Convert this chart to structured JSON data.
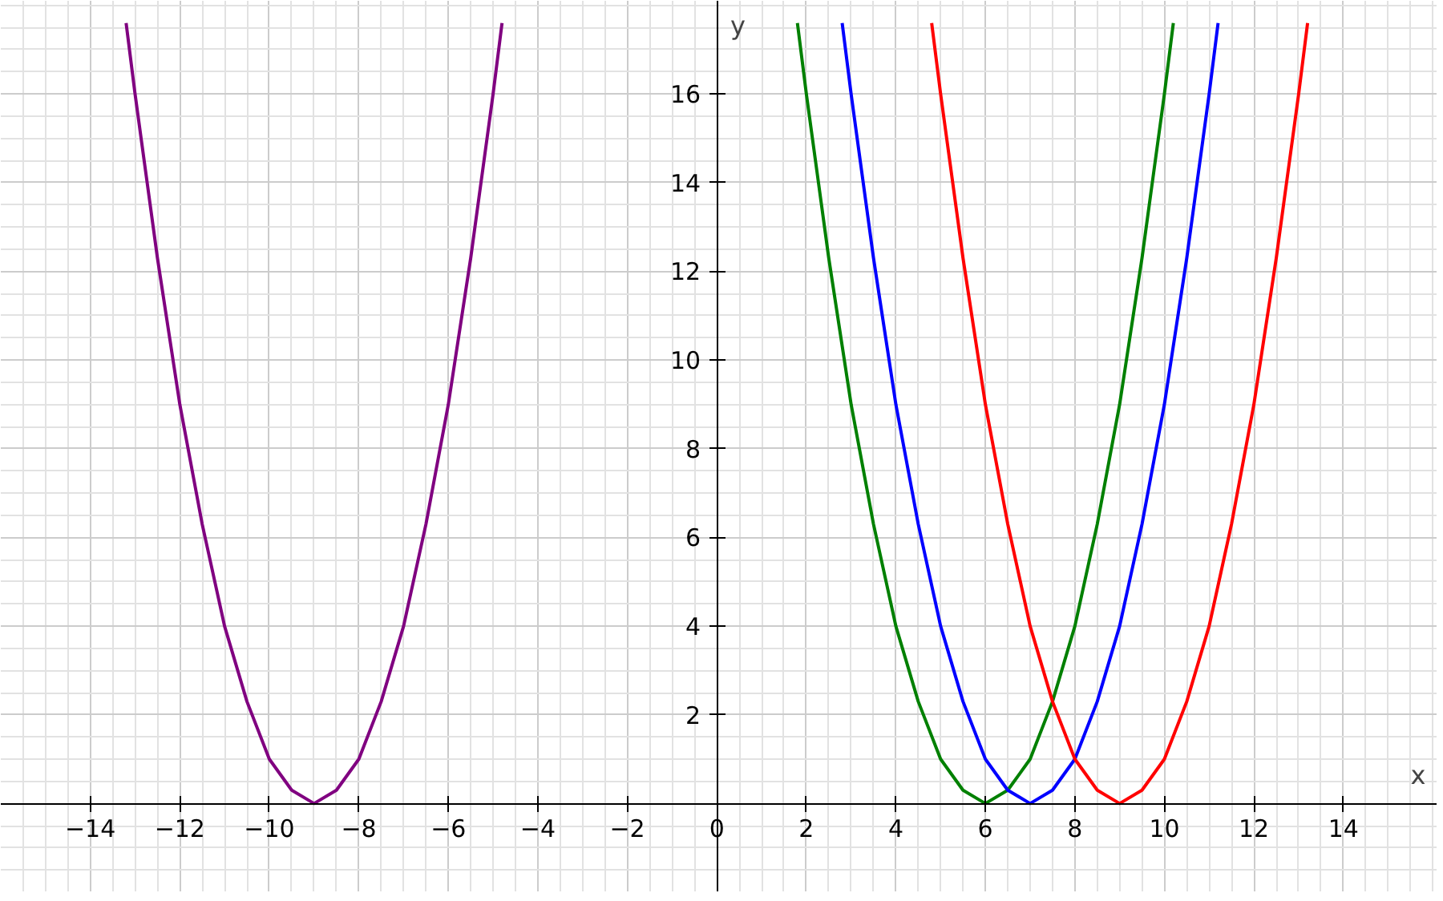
{
  "chart_data": {
    "type": "line",
    "xlabel": "x",
    "ylabel": "y",
    "xlim": [
      -16,
      16.1
    ],
    "ylim": [
      -2,
      18.1
    ],
    "xticks": [
      -14,
      -12,
      -10,
      -8,
      -6,
      -4,
      -2,
      0,
      2,
      4,
      6,
      8,
      10,
      12,
      14
    ],
    "yticks": [
      2,
      4,
      6,
      8,
      10,
      12,
      14,
      16
    ],
    "grid": true,
    "line_style": "solid",
    "series": [
      {
        "color": "#800080",
        "x": [
          -13.2,
          -13,
          -12.5,
          -12,
          -11.5,
          -11,
          -10.5,
          -10,
          -9.5,
          -9,
          -8.5,
          -8,
          -7.5,
          -7,
          -6.5,
          -6,
          -5.5,
          -5,
          -4.8
        ],
        "values": [
          17.6,
          16,
          12.3,
          9,
          6.3,
          4,
          2.3,
          1,
          0.3,
          0,
          0.3,
          1,
          2.3,
          4,
          6.3,
          9,
          12.3,
          16,
          17.6
        ]
      },
      {
        "color": "#008000",
        "x": [
          1.8,
          2,
          2.5,
          3,
          3.5,
          4,
          4.5,
          5,
          5.5,
          6,
          6.5,
          7,
          7.5,
          8,
          8.5,
          9,
          9.5,
          10,
          10.2
        ],
        "values": [
          17.6,
          16,
          12.3,
          9,
          6.3,
          4,
          2.3,
          1,
          0.3,
          0,
          0.3,
          1,
          2.3,
          4,
          6.3,
          9,
          12.3,
          16,
          17.6
        ]
      },
      {
        "color": "#0000ff",
        "x": [
          2.8,
          3,
          3.5,
          4,
          4.5,
          5,
          5.5,
          6,
          6.5,
          7,
          7.5,
          8,
          8.5,
          9,
          9.5,
          10,
          10.5,
          11,
          11.2
        ],
        "values": [
          17.6,
          16,
          12.3,
          9,
          6.3,
          4,
          2.3,
          1,
          0.3,
          0,
          0.3,
          1,
          2.3,
          4,
          6.3,
          9,
          12.3,
          16,
          17.6
        ]
      },
      {
        "color": "#ff0000",
        "x": [
          4.8,
          5,
          5.5,
          6,
          6.5,
          7,
          7.5,
          8,
          8.5,
          9,
          9.5,
          10,
          10.5,
          11,
          11.5,
          12,
          12.5,
          13,
          13.2
        ],
        "values": [
          17.6,
          16,
          12.3,
          9,
          6.3,
          4,
          2.3,
          1,
          0.3,
          0,
          0.3,
          1,
          2.3,
          4,
          6.3,
          9,
          12.3,
          16,
          17.6
        ]
      }
    ]
  }
}
